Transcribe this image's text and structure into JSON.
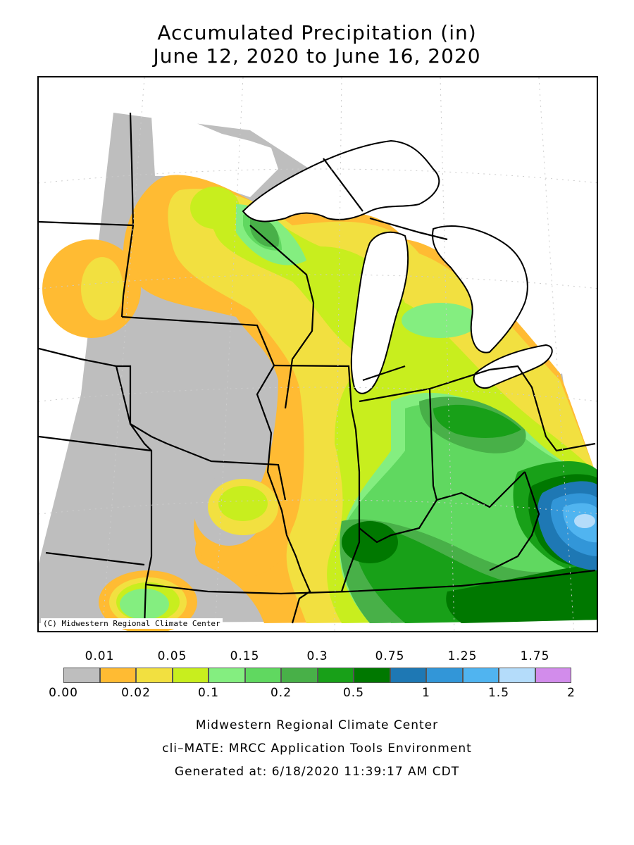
{
  "title": {
    "line1": "Accumulated Precipitation (in)",
    "line2": "June 12, 2020 to June 16, 2020"
  },
  "map": {
    "credit": "(C) Midwestern Regional Climate Center",
    "region": "Midwest United States"
  },
  "legend": {
    "top_labels": [
      "0.01",
      "0.05",
      "0.15",
      "0.3",
      "0.75",
      "1.25",
      "1.75"
    ],
    "bottom_labels": [
      "0.00",
      "0.02",
      "0.1",
      "0.2",
      "0.5",
      "1",
      "1.5",
      "2"
    ],
    "colors": [
      "#bebebe",
      "#ffbb33",
      "#f2e040",
      "#c8ee1e",
      "#84ee80",
      "#60d860",
      "#48b048",
      "#18a018",
      "#007800",
      "#1e78b4",
      "#3296d8",
      "#50b4f0",
      "#b4dcfa",
      "#d28ceb"
    ]
  },
  "footer": {
    "line1": "Midwestern Regional Climate Center",
    "line2": "cli–MATE: MRCC Application Tools Environment",
    "line3": "Generated at: 6/18/2020 11:39:17 AM CDT"
  }
}
